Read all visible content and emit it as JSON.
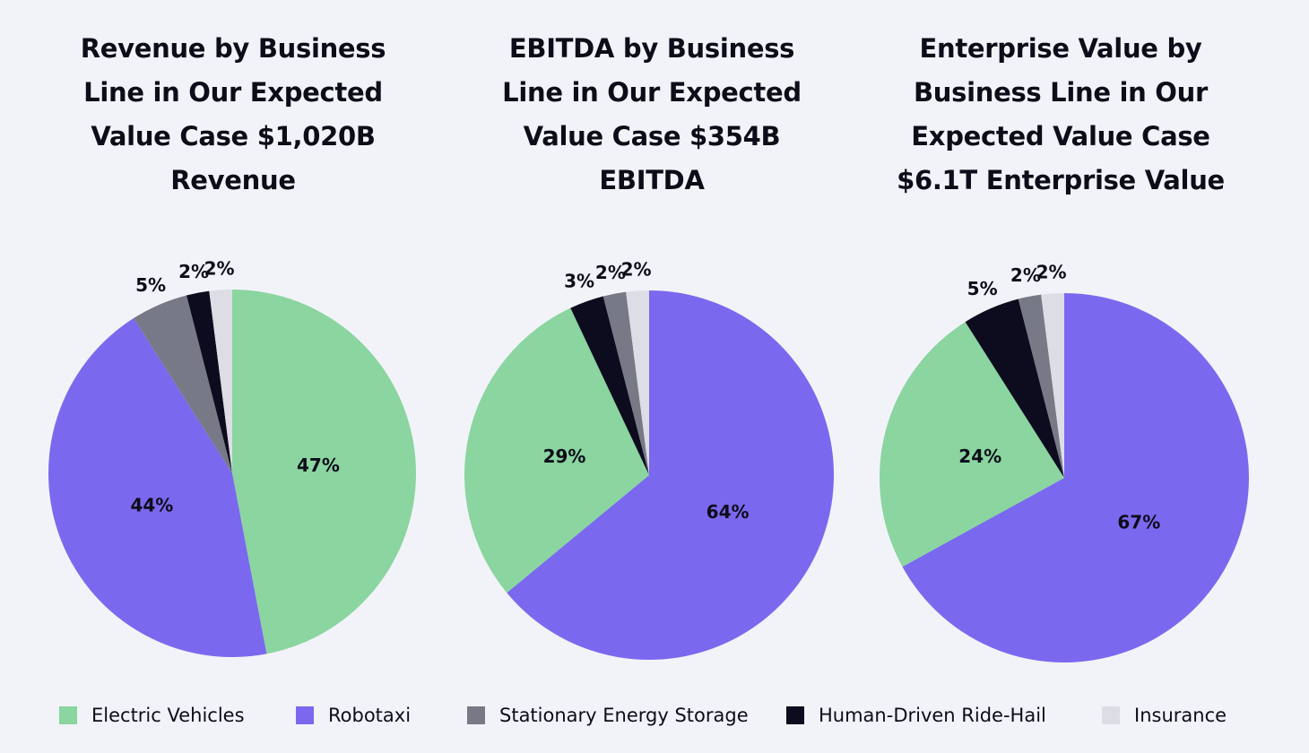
{
  "colors": {
    "Electric Vehicles": "#8ad5a0",
    "Robotaxi": "#7a69ee",
    "Stationary Energy Storage": "#777a86",
    "Human-Driven Ride-Hail": "#0d0c1e",
    "Insurance": "#dddee5"
  },
  "legend": {
    "items": [
      {
        "label": "Electric Vehicles",
        "color": "#8ad5a0"
      },
      {
        "label": "Robotaxi",
        "color": "#7a69ee"
      },
      {
        "label": "Stationary Energy Storage",
        "color": "#777a86"
      },
      {
        "label": "Human-Driven Ride-Hail",
        "color": "#0d0c1e"
      },
      {
        "label": "Insurance",
        "color": "#dddee5"
      }
    ]
  },
  "chart_data": [
    {
      "type": "pie",
      "title_lines": [
        "Revenue by Business",
        "Line in Our Expected",
        "Value Case $1,020B",
        "Revenue"
      ],
      "title": "Revenue by Business Line in Our Expected Value Case $1,020B Revenue",
      "slices": [
        {
          "name": "Electric Vehicles",
          "value": 47,
          "label": "47%"
        },
        {
          "name": "Robotaxi",
          "value": 44,
          "label": "44%"
        },
        {
          "name": "Stationary Energy Storage",
          "value": 5,
          "label": "5%"
        },
        {
          "name": "Human-Driven Ride-Hail",
          "value": 2,
          "label": "2%"
        },
        {
          "name": "Insurance",
          "value": 2,
          "label": "2%"
        }
      ]
    },
    {
      "type": "pie",
      "title_lines": [
        "EBITDA by Business",
        "Line in Our Expected",
        "Value Case $354B",
        "EBITDA"
      ],
      "title": "EBITDA by Business Line in Our Expected Value Case $354B EBITDA",
      "slices": [
        {
          "name": "Robotaxi",
          "value": 64,
          "label": "64%"
        },
        {
          "name": "Electric Vehicles",
          "value": 29,
          "label": "29%"
        },
        {
          "name": "Human-Driven Ride-Hail",
          "value": 3,
          "label": "3%"
        },
        {
          "name": "Stationary Energy Storage",
          "value": 2,
          "label": "2%"
        },
        {
          "name": "Insurance",
          "value": 2,
          "label": "2%"
        }
      ]
    },
    {
      "type": "pie",
      "title_lines": [
        "Enterprise Value by",
        "Business Line in Our",
        "Expected Value Case",
        "$6.1T Enterprise Value"
      ],
      "title": "Enterprise Value by Business Line in Our Expected Value Case $6.1T Enterprise Value",
      "slices": [
        {
          "name": "Robotaxi",
          "value": 67,
          "label": "67%"
        },
        {
          "name": "Electric Vehicles",
          "value": 24,
          "label": "24%"
        },
        {
          "name": "Human-Driven Ride-Hail",
          "value": 5,
          "label": "5%"
        },
        {
          "name": "Stationary Energy Storage",
          "value": 2,
          "label": "2%"
        },
        {
          "name": "Insurance",
          "value": 2,
          "label": "2%"
        }
      ]
    }
  ]
}
